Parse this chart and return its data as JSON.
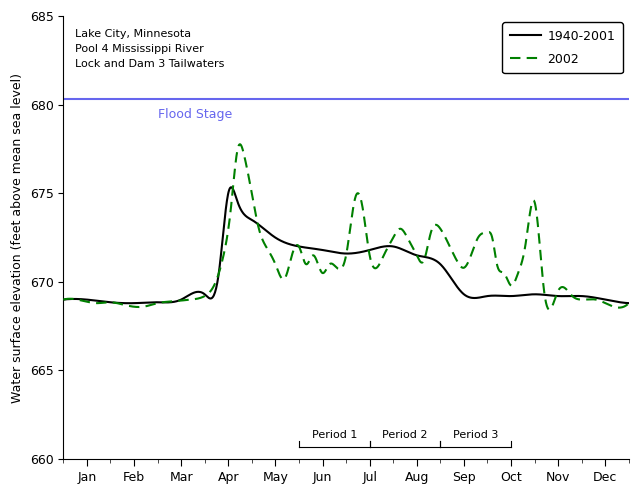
{
  "ylabel": "Water surface elevation (feet above mean sea level)",
  "ylim": [
    660,
    685
  ],
  "yticks": [
    660,
    665,
    670,
    675,
    680,
    685
  ],
  "flood_stage": 680.3,
  "flood_stage_label": "Flood Stage",
  "flood_stage_color": "#6666ee",
  "annotation_text": "Lake City, Minnesota\nPool 4 Mississippi River\nLock and Dam 3 Tailwaters",
  "legend_line1": "1940-2001",
  "legend_line2": "2002",
  "background_color": "#ffffff",
  "period_brackets": [
    {
      "label": "Period 1",
      "x_start": 5.0,
      "x_end": 6.5
    },
    {
      "label": "Period 2",
      "x_start": 6.5,
      "x_end": 8.0
    },
    {
      "label": "Period 3",
      "x_start": 8.0,
      "x_end": 9.5
    }
  ],
  "month_labels": [
    "Jan",
    "Feb",
    "Mar",
    "Apr",
    "May",
    "Jun",
    "Jul",
    "Aug",
    "Sep",
    "Oct",
    "Nov",
    "Dec"
  ],
  "month_positions": [
    0.5,
    1.5,
    2.5,
    3.5,
    4.5,
    5.5,
    6.5,
    7.5,
    8.5,
    9.5,
    10.5,
    11.5
  ],
  "xlim": [
    0,
    12
  ]
}
